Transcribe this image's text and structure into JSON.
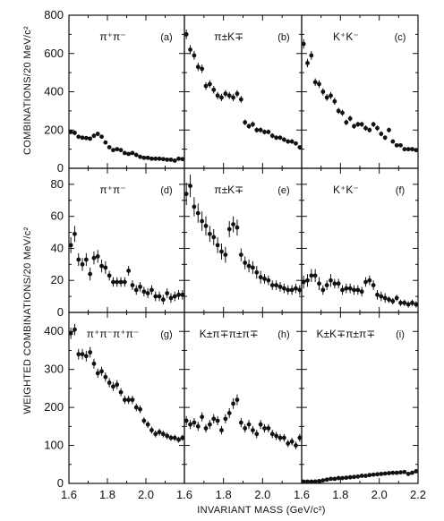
{
  "chart_data": {
    "type": "scatter",
    "xlabel": "INVARIANT MASS  (GeV/c²)",
    "x_ticks_first_column": [
      "1.6",
      "1.8",
      "2.0"
    ],
    "x_ticks_middle_column": [
      "1.6",
      "1.8",
      "2.0"
    ],
    "x_ticks_last_column": [
      "1.6",
      "1.8",
      "2.0",
      "2.2"
    ],
    "xlim": [
      1.6,
      2.2
    ],
    "rows": [
      {
        "ylabel": "COMBINATIONS/20 MeV/c²",
        "ylim": [
          0,
          800
        ],
        "yticks": [
          "0",
          "200",
          "400",
          "600",
          "800"
        ],
        "panels": [
          {
            "label": "π⁺π⁻",
            "letter": "(a)",
            "x": [
              1.61,
              1.63,
              1.65,
              1.67,
              1.69,
              1.71,
              1.73,
              1.75,
              1.77,
              1.79,
              1.81,
              1.83,
              1.85,
              1.87,
              1.89,
              1.91,
              1.93,
              1.95,
              1.97,
              1.99,
              2.01,
              2.03,
              2.05,
              2.07,
              2.09,
              2.11,
              2.13,
              2.15,
              2.17,
              2.19
            ],
            "y": [
              190,
              185,
              165,
              160,
              158,
              155,
              170,
              180,
              165,
              135,
              110,
              95,
              100,
              95,
              80,
              75,
              80,
              70,
              60,
              55,
              55,
              50,
              50,
              50,
              48,
              45,
              45,
              40,
              50,
              48
            ],
            "err": [
              12,
              12,
              11,
              11,
              11,
              11,
              12,
              12,
              11,
              10,
              9,
              9,
              9,
              9,
              8,
              8,
              8,
              8,
              7,
              7,
              7,
              7,
              7,
              7,
              7,
              6,
              6,
              6,
              7,
              7
            ]
          },
          {
            "label": "π±K∓",
            "letter": "(b)",
            "x": [
              1.61,
              1.63,
              1.65,
              1.67,
              1.69,
              1.71,
              1.73,
              1.75,
              1.77,
              1.79,
              1.81,
              1.83,
              1.85,
              1.87,
              1.89,
              1.91,
              1.93,
              1.95,
              1.97,
              1.99,
              2.01,
              2.03,
              2.05,
              2.07,
              2.09,
              2.11,
              2.13,
              2.15,
              2.17,
              2.19
            ],
            "y": [
              700,
              620,
              590,
              530,
              520,
              430,
              440,
              410,
              380,
              370,
              390,
              380,
              370,
              390,
              360,
              240,
              220,
              230,
              200,
              200,
              190,
              190,
              170,
              160,
              160,
              150,
              140,
              140,
              130,
              110
            ],
            "err": [
              25,
              24,
              23,
              22,
              22,
              20,
              20,
              20,
              19,
              19,
              19,
              19,
              19,
              19,
              18,
              15,
              14,
              15,
              14,
              14,
              13,
              13,
              13,
              12,
              12,
              12,
              12,
              12,
              11,
              10
            ]
          },
          {
            "label": "K⁺K⁻",
            "letter": "(c)",
            "x": [
              1.61,
              1.63,
              1.65,
              1.67,
              1.69,
              1.71,
              1.73,
              1.75,
              1.77,
              1.79,
              1.81,
              1.83,
              1.85,
              1.87,
              1.89,
              1.91,
              1.93,
              1.95,
              1.97,
              1.99,
              2.01,
              2.03,
              2.05,
              2.07,
              2.09,
              2.11,
              2.13,
              2.15,
              2.17,
              2.19
            ],
            "y": [
              650,
              550,
              590,
              450,
              440,
              400,
              370,
              380,
              350,
              300,
              290,
              240,
              260,
              220,
              230,
              230,
              210,
              200,
              230,
              210,
              180,
              160,
              200,
              140,
              120,
              120,
              100,
              100,
              100,
              95
            ],
            "err": [
              25,
              22,
              23,
              20,
              20,
              19,
              18,
              18,
              18,
              16,
              16,
              15,
              15,
              14,
              14,
              14,
              14,
              13,
              14,
              14,
              13,
              12,
              13,
              11,
              10,
              10,
              10,
              10,
              10,
              9
            ]
          }
        ]
      },
      {
        "ylabel": "WEIGHTED COMBINATIONS/20 MeV/c²",
        "ylim": [
          0,
          90
        ],
        "yticks": [
          "0",
          "20",
          "40",
          "60",
          "80"
        ],
        "panels": [
          {
            "label": "π⁺π⁻",
            "letter": "(d)",
            "x": [
              1.61,
              1.63,
              1.65,
              1.67,
              1.69,
              1.71,
              1.73,
              1.75,
              1.77,
              1.79,
              1.81,
              1.83,
              1.85,
              1.87,
              1.89,
              1.91,
              1.93,
              1.95,
              1.97,
              1.99,
              2.01,
              2.03,
              2.05,
              2.07,
              2.09,
              2.11,
              2.13,
              2.15,
              2.17,
              2.19
            ],
            "y": [
              42,
              49,
              33,
              30,
              33,
              24,
              34,
              35,
              29,
              28,
              23,
              19,
              19,
              19,
              19,
              26,
              17,
              14,
              16,
              13,
              12,
              14,
              10,
              10,
              8,
              12,
              9,
              10,
              11,
              11
            ],
            "err": [
              5,
              5,
              4,
              4,
              4,
              4,
              4,
              4,
              4,
              4,
              3,
              3,
              3,
              3,
              3,
              3,
              3,
              3,
              3,
              3,
              3,
              3,
              3,
              3,
              3,
              3,
              3,
              3,
              3,
              3
            ]
          },
          {
            "label": "π±K∓",
            "letter": "(e)",
            "x": [
              1.61,
              1.63,
              1.65,
              1.67,
              1.69,
              1.71,
              1.73,
              1.75,
              1.77,
              1.79,
              1.81,
              1.83,
              1.85,
              1.87,
              1.89,
              1.91,
              1.93,
              1.95,
              1.97,
              1.99,
              2.01,
              2.03,
              2.05,
              2.07,
              2.09,
              2.11,
              2.13,
              2.15,
              2.17,
              2.19
            ],
            "y": [
              74,
              79,
              66,
              62,
              57,
              54,
              49,
              47,
              42,
              38,
              36,
              52,
              55,
              53,
              36,
              31,
              29,
              28,
              25,
              22,
              21,
              20,
              17,
              17,
              16,
              15,
              14,
              14,
              15,
              14
            ],
            "err": [
              7,
              7,
              6,
              6,
              6,
              6,
              5,
              5,
              5,
              5,
              5,
              5,
              5,
              5,
              4,
              4,
              4,
              4,
              4,
              4,
              3,
              3,
              3,
              3,
              3,
              3,
              3,
              3,
              3,
              3
            ]
          },
          {
            "label": "K⁺K⁻",
            "letter": "(f)",
            "x": [
              1.61,
              1.63,
              1.65,
              1.67,
              1.69,
              1.71,
              1.73,
              1.75,
              1.77,
              1.79,
              1.81,
              1.83,
              1.85,
              1.87,
              1.89,
              1.91,
              1.93,
              1.95,
              1.97,
              1.99,
              2.01,
              2.03,
              2.05,
              2.07,
              2.09,
              2.11,
              2.13,
              2.15,
              2.17,
              2.19
            ],
            "y": [
              19,
              20,
              23,
              23,
              18,
              14,
              17,
              20,
              18,
              18,
              14,
              15,
              15,
              14,
              14,
              13,
              19,
              20,
              17,
              11,
              10,
              9,
              8,
              7,
              9,
              6,
              6,
              5,
              6,
              5
            ],
            "err": [
              4,
              4,
              4,
              4,
              4,
              3,
              3,
              4,
              3,
              3,
              3,
              3,
              3,
              3,
              3,
              3,
              3,
              3,
              3,
              3,
              3,
              3,
              2,
              2,
              2,
              2,
              2,
              2,
              2,
              2
            ]
          }
        ]
      },
      {
        "ylabel": "",
        "ylim": [
          0,
          450
        ],
        "yticks": [
          "0",
          "100",
          "200",
          "300",
          "400"
        ],
        "panels": [
          {
            "label": "π⁺π⁻π⁺π⁻",
            "letter": "(g)",
            "x": [
              1.61,
              1.63,
              1.65,
              1.67,
              1.69,
              1.71,
              1.73,
              1.75,
              1.77,
              1.79,
              1.81,
              1.83,
              1.85,
              1.87,
              1.89,
              1.91,
              1.93,
              1.95,
              1.97,
              1.99,
              2.01,
              2.03,
              2.05,
              2.07,
              2.09,
              2.11,
              2.13,
              2.15,
              2.17,
              2.19
            ],
            "y": [
              395,
              405,
              340,
              340,
              335,
              345,
              315,
              290,
              295,
              280,
              265,
              255,
              260,
              240,
              220,
              220,
              220,
              200,
              195,
              165,
              155,
              140,
              130,
              135,
              130,
              125,
              120,
              120,
              115,
              120
            ],
            "err": [
              15,
              15,
              14,
              14,
              14,
              14,
              13,
              12,
              12,
              12,
              12,
              12,
              12,
              11,
              11,
              11,
              11,
              10,
              10,
              9,
              9,
              9,
              9,
              9,
              9,
              9,
              8,
              8,
              8,
              8
            ]
          },
          {
            "label": "K±π∓π±π∓",
            "letter": "(h)",
            "x": [
              1.61,
              1.63,
              1.65,
              1.67,
              1.69,
              1.71,
              1.73,
              1.75,
              1.77,
              1.79,
              1.81,
              1.83,
              1.85,
              1.87,
              1.89,
              1.91,
              1.93,
              1.95,
              1.97,
              1.99,
              2.01,
              2.03,
              2.05,
              2.07,
              2.09,
              2.11,
              2.13,
              2.15,
              2.17,
              2.19
            ],
            "y": [
              165,
              155,
              160,
              150,
              175,
              145,
              155,
              170,
              165,
              140,
              170,
              185,
              210,
              220,
              160,
              145,
              155,
              140,
              130,
              155,
              145,
              145,
              130,
              125,
              120,
              120,
              105,
              110,
              100,
              120
            ],
            "err": [
              12,
              12,
              12,
              12,
              12,
              11,
              12,
              12,
              12,
              11,
              12,
              13,
              14,
              14,
              12,
              11,
              12,
              11,
              11,
              12,
              11,
              11,
              11,
              11,
              10,
              10,
              10,
              10,
              10,
              10
            ]
          },
          {
            "label": "K±K∓π±π∓",
            "letter": "(i)",
            "x": [
              1.61,
              1.63,
              1.65,
              1.67,
              1.69,
              1.71,
              1.73,
              1.75,
              1.77,
              1.79,
              1.81,
              1.83,
              1.85,
              1.87,
              1.89,
              1.91,
              1.93,
              1.95,
              1.97,
              1.99,
              2.01,
              2.03,
              2.05,
              2.07,
              2.09,
              2.11,
              2.13,
              2.15,
              2.17,
              2.19
            ],
            "y": [
              2,
              3,
              4,
              5,
              6,
              8,
              10,
              12,
              12,
              14,
              14,
              15,
              16,
              17,
              18,
              20,
              20,
              22,
              23,
              24,
              25,
              26,
              27,
              28,
              28,
              29,
              30,
              25,
              28,
              32
            ],
            "err": [
              2,
              2,
              2,
              2,
              2,
              2,
              3,
              3,
              3,
              3,
              3,
              3,
              3,
              3,
              3,
              3,
              3,
              3,
              3,
              3,
              3,
              3,
              3,
              3,
              3,
              3,
              3,
              3,
              3,
              3
            ]
          }
        ]
      }
    ]
  }
}
